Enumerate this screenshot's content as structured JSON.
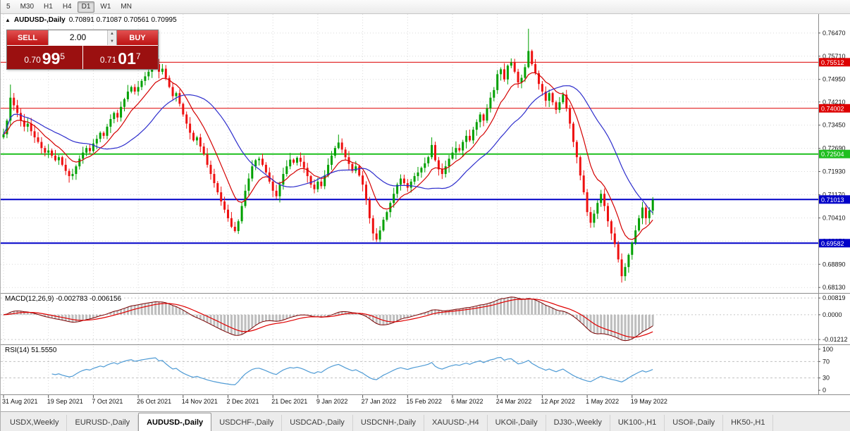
{
  "toolbar": {
    "timeframes": [
      {
        "label": "5",
        "active": false
      },
      {
        "label": "M30",
        "active": false
      },
      {
        "label": "H1",
        "active": false
      },
      {
        "label": "H4",
        "active": false
      },
      {
        "label": "D1",
        "active": true
      },
      {
        "label": "W1",
        "active": false
      },
      {
        "label": "MN",
        "active": false
      }
    ]
  },
  "chart_header": {
    "collapse_icon": "▲",
    "symbol": "AUDUSD-,Daily",
    "ohlc": "0.70891 0.71087 0.70561 0.70995"
  },
  "trade_panel": {
    "sell_label": "SELL",
    "buy_label": "BUY",
    "volume": "2.00",
    "spinner_up_icon": "▲",
    "spinner_down_icon": "▼",
    "sell_price_prefix": "0.70",
    "sell_price_main": "99",
    "sell_price_sup": "5",
    "buy_price_prefix": "0.71",
    "buy_price_main": "01",
    "buy_price_sup": "7"
  },
  "panels": {
    "macd_label": "MACD(12,26,9) -0.002783 -0.006156",
    "rsi_label": "RSI(14) 51.5550"
  },
  "tabs": [
    {
      "label": "USDX,Weekly",
      "active": false
    },
    {
      "label": "EURUSD-,Daily",
      "active": false
    },
    {
      "label": "AUDUSD-,Daily",
      "active": true
    },
    {
      "label": "USDCHF-,Daily",
      "active": false
    },
    {
      "label": "USDCAD-,Daily",
      "active": false
    },
    {
      "label": "USDCNH-,Daily",
      "active": false
    },
    {
      "label": "XAUUSD-,H4",
      "active": false
    },
    {
      "label": "UKOil-,Daily",
      "active": false
    },
    {
      "label": "DJ30-,Weekly",
      "active": false
    },
    {
      "label": "UK100-,H1",
      "active": false
    },
    {
      "label": "USOil-,Daily",
      "active": false
    },
    {
      "label": "HK50-,H1",
      "active": false
    }
  ],
  "chart_data": {
    "type": "candlestick",
    "symbol": "AUDUSD-,Daily",
    "ohlc_header": {
      "open": "0.70891",
      "high": "0.71087",
      "low": "0.70561",
      "close": "0.70995"
    },
    "ylim": [
      0.6795,
      0.7709
    ],
    "yticks": [
      {
        "v": 0.7647,
        "label": "0.76470"
      },
      {
        "v": 0.7571,
        "label": "0.75710"
      },
      {
        "v": 0.7495,
        "label": "0.74950"
      },
      {
        "v": 0.7421,
        "label": "0.74210"
      },
      {
        "v": 0.7345,
        "label": "0.73450"
      },
      {
        "v": 0.7269,
        "label": "0.72690"
      },
      {
        "v": 0.7193,
        "label": "0.71930"
      },
      {
        "v": 0.7117,
        "label": "0.71170"
      },
      {
        "v": 0.7041,
        "label": "0.70410"
      },
      {
        "v": 0.6965,
        "label": "0.69650"
      },
      {
        "v": 0.6889,
        "label": "0.68890"
      },
      {
        "v": 0.6813,
        "label": "0.68130"
      }
    ],
    "levels": [
      {
        "price": 0.75512,
        "label": "0.75512",
        "color": "#dd0000",
        "width": 1
      },
      {
        "price": 0.74002,
        "label": "0.74002",
        "color": "#dd0000",
        "width": 1
      },
      {
        "price": 0.72504,
        "label": "0.72504",
        "color": "#1fbf1f",
        "width": 2
      },
      {
        "price": 0.71013,
        "label": "0.71013",
        "color": "#0000c8",
        "width": 2
      },
      {
        "price": 0.69582,
        "label": "0.69582",
        "color": "#0000c8",
        "width": 2
      }
    ],
    "x_dates": [
      "31 Aug 2021",
      "19 Sep 2021",
      "7 Oct 2021",
      "26 Oct 2021",
      "14 Nov 2021",
      "2 Dec 2021",
      "21 Dec 2021",
      "9 Jan 2022",
      "27 Jan 2022",
      "15 Feb 2022",
      "6 Mar 2022",
      "24 Mar 2022",
      "12 Apr 2022",
      "1 May 2022",
      "19 May 2022"
    ],
    "bars_per_label": 13,
    "closes": [
      0.7315,
      0.736,
      0.7435,
      0.741,
      0.7385,
      0.736,
      0.734,
      0.735,
      0.7325,
      0.7305,
      0.729,
      0.727,
      0.7255,
      0.7262,
      0.7245,
      0.723,
      0.724,
      0.7215,
      0.7195,
      0.7178,
      0.7185,
      0.721,
      0.7235,
      0.7255,
      0.727,
      0.726,
      0.7285,
      0.73,
      0.732,
      0.731,
      0.734,
      0.7365,
      0.7385,
      0.737,
      0.7405,
      0.743,
      0.7455,
      0.747,
      0.7455,
      0.747,
      0.749,
      0.7505,
      0.752,
      0.7535,
      0.7545,
      0.752,
      0.753,
      0.75,
      0.747,
      0.744,
      0.745,
      0.7415,
      0.738,
      0.735,
      0.732,
      0.7295,
      0.7305,
      0.7275,
      0.725,
      0.7215,
      0.7185,
      0.7155,
      0.7125,
      0.7095,
      0.7068,
      0.704,
      0.7012,
      0.6998,
      0.703,
      0.708,
      0.713,
      0.717,
      0.721,
      0.723,
      0.7235,
      0.7215,
      0.719,
      0.716,
      0.713,
      0.7112,
      0.715,
      0.7185,
      0.721,
      0.7232,
      0.7222,
      0.7238,
      0.7225,
      0.7205,
      0.7178,
      0.715,
      0.7135,
      0.716,
      0.7145,
      0.718,
      0.7215,
      0.7245,
      0.727,
      0.7288,
      0.7265,
      0.724,
      0.7218,
      0.7195,
      0.721,
      0.718,
      0.715,
      0.71,
      0.704,
      0.699,
      0.697,
      0.7,
      0.7035,
      0.706,
      0.709,
      0.712,
      0.715,
      0.717,
      0.7155,
      0.714,
      0.716,
      0.7178,
      0.719,
      0.7205,
      0.722,
      0.724,
      0.728,
      0.723,
      0.72,
      0.7185,
      0.721,
      0.7235,
      0.7255,
      0.727,
      0.7262,
      0.729,
      0.731,
      0.7295,
      0.733,
      0.7355,
      0.738,
      0.736,
      0.74,
      0.7435,
      0.746,
      0.7512,
      0.7528,
      0.7495,
      0.754,
      0.755,
      0.752,
      0.7485,
      0.75,
      0.7535,
      0.7588,
      0.7545,
      0.7515,
      0.748,
      0.7455,
      0.7425,
      0.745,
      0.742,
      0.7395,
      0.742,
      0.7445,
      0.74,
      0.735,
      0.729,
      0.724,
      0.718,
      0.7125,
      0.706,
      0.7025,
      0.7055,
      0.709,
      0.712,
      0.708,
      0.703,
      0.699,
      0.6955,
      0.6905,
      0.685,
      0.688,
      0.692,
      0.696,
      0.7,
      0.704,
      0.7075,
      0.704,
      0.7065,
      0.70995
    ],
    "spikes": [
      {
        "i": 2,
        "high": 0.7478
      },
      {
        "i": 44,
        "high": 0.7556
      },
      {
        "i": 67,
        "low": 0.6993
      },
      {
        "i": 97,
        "high": 0.7314
      },
      {
        "i": 107,
        "low": 0.6967
      },
      {
        "i": 124,
        "high": 0.7305
      },
      {
        "i": 152,
        "high": 0.7661
      },
      {
        "i": 179,
        "low": 0.6829
      }
    ],
    "ma": [
      {
        "type": "ema",
        "period": 10,
        "color": "#d40000"
      },
      {
        "type": "sma",
        "period": 25,
        "color": "#2d2dcc"
      }
    ],
    "colors": {
      "up": "#00a000",
      "down": "#ee1111",
      "grid": "#d9d9d9"
    },
    "macd": {
      "label": "MACD(12,26,9)",
      "values": "-0.002783 -0.006156",
      "range": [
        -0.0145,
        0.0103
      ],
      "yticks": [
        {
          "v": 0.00819,
          "label": "0.00819"
        },
        {
          "v": 0,
          "label": "0.0000"
        },
        {
          "v": -0.01212,
          "label": "-0.01212"
        }
      ],
      "colors": {
        "hist": "#bdbdbd",
        "signal": "#e00000",
        "main": "#7a0000"
      }
    },
    "rsi": {
      "label": "RSI(14)",
      "value": "51.5550",
      "period": 14,
      "range": [
        -10,
        110
      ],
      "levels": [
        70,
        30
      ],
      "yticks": [
        {
          "v": 100,
          "label": "100"
        },
        {
          "v": 70,
          "label": "70"
        },
        {
          "v": 30,
          "label": "30"
        },
        {
          "v": 0,
          "label": "0"
        }
      ],
      "color": "#4f9bd5"
    }
  }
}
